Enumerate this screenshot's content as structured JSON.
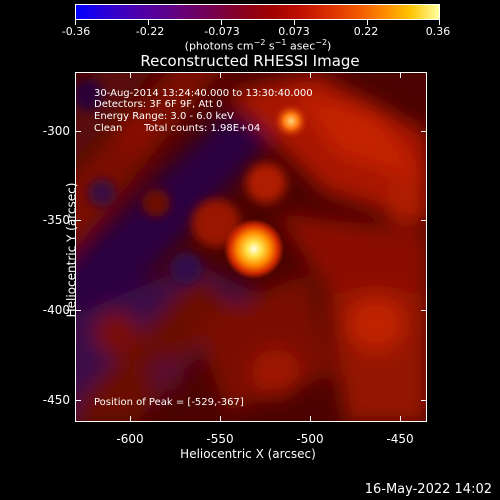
{
  "colorbar": {
    "tick_labels": [
      "-0.36",
      "-0.22",
      "-0.073",
      "0.073",
      "0.22",
      "0.36"
    ],
    "range": [
      -0.36,
      0.36
    ],
    "units_text": "(photons cm",
    "units_exp1": "−2",
    "units_mid": " s",
    "units_exp2": "−1",
    "units_mid2": " asec",
    "units_exp3": "−2",
    "units_end": ")"
  },
  "title": "Reconstructed RHESSI Image",
  "info": {
    "time_range": "30-Aug-2014 13:24:40.000 to 13:30:40.000",
    "detectors": "Detectors: 3F 6F 9F, Att 0",
    "energy": "Energy Range: 3.0 - 6.0 keV",
    "algorithm": "Clean",
    "counts": "Total counts: 1.98E+04",
    "peak": "Position of Peak = [-529,-367]"
  },
  "axes": {
    "xlabel": "Heliocentric X (arcsec)",
    "ylabel": "Heliocentric Y (arcsec)",
    "x_ticks": [
      "-600",
      "-550",
      "-500",
      "-450"
    ],
    "y_ticks": [
      "-300",
      "-350",
      "-400",
      "-450"
    ]
  },
  "footer": {
    "date": "16-May-2022 14:02"
  }
}
